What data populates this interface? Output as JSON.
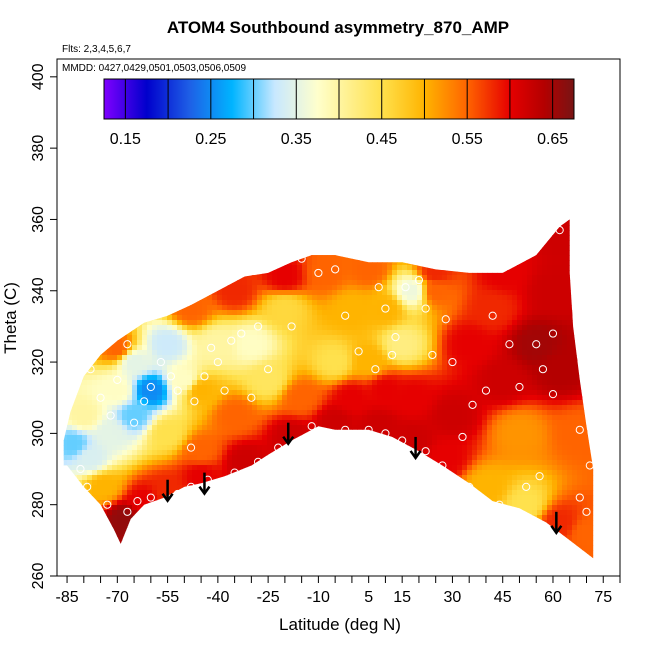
{
  "chart_data": {
    "type": "heatmap",
    "title": "ATOM4 Southbound asymmetry_870_AMP",
    "annotations": {
      "flights": "Flts: 2,3,4,5,6,7",
      "dates": "MMDD: 0427,0429,0501,0503,0506,0509"
    },
    "xlabel": "Latitude (deg N)",
    "ylabel": "Theta (C)",
    "xlim": [
      -88,
      80
    ],
    "ylim": [
      260,
      405
    ],
    "x_ticks": [
      -85,
      -70,
      -55,
      -40,
      -25,
      -10,
      5,
      15,
      30,
      45,
      60,
      75
    ],
    "x_tick_labels": [
      "-85",
      "-70",
      "-55",
      "-40",
      "-25",
      "-10",
      "5",
      "15",
      "30",
      "45",
      "60",
      "75"
    ],
    "x_minor_ticks": [
      -80,
      -75,
      -65,
      -60,
      -50,
      -45,
      -35,
      -30,
      -20,
      -15,
      -5,
      0,
      10,
      20,
      25,
      35,
      40,
      50,
      55,
      65,
      70,
      80
    ],
    "y_ticks": [
      260,
      280,
      300,
      320,
      340,
      360,
      380,
      400
    ],
    "y_tick_labels": [
      "260",
      "280",
      "300",
      "320",
      "340",
      "360",
      "380",
      "400"
    ],
    "colorbar": {
      "range": [
        0.125,
        0.675
      ],
      "ticks": [
        0.15,
        0.25,
        0.35,
        0.45,
        0.55,
        0.65
      ],
      "tick_labels": [
        "0.15",
        "0.25",
        "0.35",
        "0.45",
        "0.55",
        "0.65"
      ],
      "dividers": [
        0.15,
        0.2,
        0.25,
        0.3,
        0.35,
        0.4,
        0.45,
        0.5,
        0.55,
        0.6,
        0.65
      ],
      "colors": [
        "#7f00ff",
        "#0000cc",
        "#1e5fe6",
        "#00b4ff",
        "#c8e8ff",
        "#ffffcc",
        "#ffe14d",
        "#ffb400",
        "#ff6400",
        "#e60000",
        "#b40000",
        "#781414"
      ],
      "color_stops": [
        0.125,
        0.175,
        0.225,
        0.275,
        0.325,
        0.375,
        0.45,
        0.5,
        0.55,
        0.6,
        0.64,
        0.675
      ]
    },
    "lower_boundary": [
      [
        -85,
        291
      ],
      [
        -80,
        285
      ],
      [
        -75,
        280
      ],
      [
        -71,
        273
      ],
      [
        -69,
        269
      ],
      [
        -66,
        276
      ],
      [
        -62,
        280
      ],
      [
        -56,
        282
      ],
      [
        -50,
        285
      ],
      [
        -45,
        286
      ],
      [
        -38,
        288
      ],
      [
        -30,
        291
      ],
      [
        -25,
        294
      ],
      [
        -18,
        298
      ],
      [
        -10,
        302
      ],
      [
        -5,
        301
      ],
      [
        5,
        301
      ],
      [
        12,
        299
      ],
      [
        20,
        295
      ],
      [
        27,
        291
      ],
      [
        35,
        286
      ],
      [
        42,
        281
      ],
      [
        50,
        279
      ],
      [
        58,
        275
      ],
      [
        65,
        270
      ],
      [
        72,
        265
      ]
    ],
    "upper_boundary": [
      [
        72,
        265
      ],
      [
        72,
        290
      ],
      [
        70,
        302
      ],
      [
        68,
        315
      ],
      [
        66,
        330
      ],
      [
        65,
        345
      ],
      [
        65,
        360
      ],
      [
        62,
        358
      ],
      [
        55,
        350
      ],
      [
        45,
        345
      ],
      [
        35,
        345
      ],
      [
        25,
        346
      ],
      [
        15,
        348
      ],
      [
        5,
        348
      ],
      [
        -5,
        350
      ],
      [
        -12,
        350
      ],
      [
        -18,
        348
      ],
      [
        -25,
        345
      ],
      [
        -32,
        344
      ],
      [
        -40,
        340
      ],
      [
        -48,
        336
      ],
      [
        -55,
        333
      ],
      [
        -62,
        331
      ],
      [
        -70,
        326
      ],
      [
        -75,
        322
      ],
      [
        -80,
        316
      ],
      [
        -84,
        306
      ],
      [
        -86,
        298
      ],
      [
        -86,
        291
      ]
    ],
    "field_points": [
      {
        "lat": -78,
        "theta": 293,
        "value": 0.34
      },
      {
        "lat": -74,
        "theta": 285,
        "value": 0.5
      },
      {
        "lat": -68,
        "theta": 276,
        "value": 0.66
      },
      {
        "lat": -62,
        "theta": 281,
        "value": 0.6
      },
      {
        "lat": -55,
        "theta": 284,
        "value": 0.58
      },
      {
        "lat": -45,
        "theta": 288,
        "value": 0.6
      },
      {
        "lat": -32,
        "theta": 292,
        "value": 0.62
      },
      {
        "lat": -18,
        "theta": 299,
        "value": 0.62
      },
      {
        "lat": -5,
        "theta": 303,
        "value": 0.62
      },
      {
        "lat": 8,
        "theta": 302,
        "value": 0.62
      },
      {
        "lat": 18,
        "theta": 298,
        "value": 0.62
      },
      {
        "lat": 28,
        "theta": 293,
        "value": 0.6
      },
      {
        "lat": 40,
        "theta": 285,
        "value": 0.5
      },
      {
        "lat": 52,
        "theta": 280,
        "value": 0.45
      },
      {
        "lat": 62,
        "theta": 275,
        "value": 0.58
      },
      {
        "lat": 70,
        "theta": 272,
        "value": 0.55
      },
      {
        "lat": 68,
        "theta": 300,
        "value": 0.55
      },
      {
        "lat": 62,
        "theta": 318,
        "value": 0.64
      },
      {
        "lat": 60,
        "theta": 340,
        "value": 0.62
      },
      {
        "lat": 55,
        "theta": 325,
        "value": 0.65
      },
      {
        "lat": 50,
        "theta": 300,
        "value": 0.52
      },
      {
        "lat": 45,
        "theta": 315,
        "value": 0.62
      },
      {
        "lat": 42,
        "theta": 335,
        "value": 0.58
      },
      {
        "lat": 35,
        "theta": 325,
        "value": 0.6
      },
      {
        "lat": 30,
        "theta": 305,
        "value": 0.62
      },
      {
        "lat": 25,
        "theta": 340,
        "value": 0.55
      },
      {
        "lat": 18,
        "theta": 340,
        "value": 0.36
      },
      {
        "lat": 15,
        "theta": 325,
        "value": 0.42
      },
      {
        "lat": 18,
        "theta": 310,
        "value": 0.6
      },
      {
        "lat": 10,
        "theta": 335,
        "value": 0.5
      },
      {
        "lat": 5,
        "theta": 320,
        "value": 0.5
      },
      {
        "lat": 0,
        "theta": 335,
        "value": 0.5
      },
      {
        "lat": -5,
        "theta": 320,
        "value": 0.45
      },
      {
        "lat": -8,
        "theta": 345,
        "value": 0.55
      },
      {
        "lat": -15,
        "theta": 310,
        "value": 0.55
      },
      {
        "lat": -20,
        "theta": 335,
        "value": 0.46
      },
      {
        "lat": -25,
        "theta": 315,
        "value": 0.44
      },
      {
        "lat": -30,
        "theta": 325,
        "value": 0.38
      },
      {
        "lat": -35,
        "theta": 305,
        "value": 0.55
      },
      {
        "lat": -40,
        "theta": 325,
        "value": 0.4
      },
      {
        "lat": -45,
        "theta": 312,
        "value": 0.5
      },
      {
        "lat": -45,
        "theta": 295,
        "value": 0.55
      },
      {
        "lat": -50,
        "theta": 315,
        "value": 0.38
      },
      {
        "lat": -55,
        "theta": 325,
        "value": 0.33
      },
      {
        "lat": -55,
        "theta": 300,
        "value": 0.45
      },
      {
        "lat": -60,
        "theta": 312,
        "value": 0.25
      },
      {
        "lat": -65,
        "theta": 320,
        "value": 0.35
      },
      {
        "lat": -65,
        "theta": 305,
        "value": 0.3
      },
      {
        "lat": -70,
        "theta": 312,
        "value": 0.38
      },
      {
        "lat": -72,
        "theta": 300,
        "value": 0.35
      },
      {
        "lat": -80,
        "theta": 305,
        "value": 0.4
      },
      {
        "lat": -83,
        "theta": 297,
        "value": 0.3
      },
      {
        "lat": -70,
        "theta": 324,
        "value": 0.55
      },
      {
        "lat": -48,
        "theta": 335,
        "value": 0.55
      },
      {
        "lat": -35,
        "theta": 340,
        "value": 0.58
      },
      {
        "lat": -20,
        "theta": 344,
        "value": 0.6
      },
      {
        "lat": 5,
        "theta": 346,
        "value": 0.55
      },
      {
        "lat": 25,
        "theta": 345,
        "value": 0.58
      },
      {
        "lat": 45,
        "theta": 345,
        "value": 0.6
      },
      {
        "lat": 62,
        "theta": 356,
        "value": 0.62
      },
      {
        "lat": 0,
        "theta": 310,
        "value": 0.6
      },
      {
        "lat": 10,
        "theta": 312,
        "value": 0.6
      }
    ],
    "observation_points": [
      {
        "lat": -81,
        "theta": 290
      },
      {
        "lat": -79,
        "theta": 285
      },
      {
        "lat": -73,
        "theta": 280
      },
      {
        "lat": -71,
        "theta": 270
      },
      {
        "lat": -67,
        "theta": 278
      },
      {
        "lat": -64,
        "theta": 281
      },
      {
        "lat": -60,
        "theta": 282
      },
      {
        "lat": -52,
        "theta": 283
      },
      {
        "lat": -48,
        "theta": 285
      },
      {
        "lat": -43,
        "theta": 287
      },
      {
        "lat": -35,
        "theta": 289
      },
      {
        "lat": -28,
        "theta": 292
      },
      {
        "lat": -22,
        "theta": 296
      },
      {
        "lat": -12,
        "theta": 302
      },
      {
        "lat": -2,
        "theta": 301
      },
      {
        "lat": 5,
        "theta": 301
      },
      {
        "lat": 10,
        "theta": 300
      },
      {
        "lat": 15,
        "theta": 298
      },
      {
        "lat": 22,
        "theta": 295
      },
      {
        "lat": 27,
        "theta": 291
      },
      {
        "lat": 35,
        "theta": 285
      },
      {
        "lat": 44,
        "theta": 280
      },
      {
        "lat": 52,
        "theta": 285
      },
      {
        "lat": 56,
        "theta": 288
      },
      {
        "lat": 68,
        "theta": 282
      },
      {
        "lat": 71,
        "theta": 291
      },
      {
        "lat": 70,
        "theta": 278
      },
      {
        "lat": 68,
        "theta": 301
      },
      {
        "lat": 60,
        "theta": 311
      },
      {
        "lat": 57,
        "theta": 318
      },
      {
        "lat": 55,
        "theta": 325
      },
      {
        "lat": 60,
        "theta": 328
      },
      {
        "lat": 62,
        "theta": 357
      },
      {
        "lat": 50,
        "theta": 313
      },
      {
        "lat": 47,
        "theta": 325
      },
      {
        "lat": 42,
        "theta": 333
      },
      {
        "lat": 40,
        "theta": 312
      },
      {
        "lat": 36,
        "theta": 308
      },
      {
        "lat": 30,
        "theta": 320
      },
      {
        "lat": 28,
        "theta": 332
      },
      {
        "lat": 22,
        "theta": 335
      },
      {
        "lat": 20,
        "theta": 343
      },
      {
        "lat": 16,
        "theta": 341
      },
      {
        "lat": 13,
        "theta": 327
      },
      {
        "lat": 12,
        "theta": 322
      },
      {
        "lat": 10,
        "theta": 335
      },
      {
        "lat": 7,
        "theta": 318
      },
      {
        "lat": 2,
        "theta": 323
      },
      {
        "lat": -2,
        "theta": 333
      },
      {
        "lat": -5,
        "theta": 346
      },
      {
        "lat": -10,
        "theta": 345
      },
      {
        "lat": -15,
        "theta": 349
      },
      {
        "lat": -18,
        "theta": 330
      },
      {
        "lat": -25,
        "theta": 318
      },
      {
        "lat": -28,
        "theta": 330
      },
      {
        "lat": -33,
        "theta": 328
      },
      {
        "lat": -36,
        "theta": 326
      },
      {
        "lat": -40,
        "theta": 320
      },
      {
        "lat": -44,
        "theta": 316
      },
      {
        "lat": -47,
        "theta": 309
      },
      {
        "lat": -52,
        "theta": 312
      },
      {
        "lat": -54,
        "theta": 316
      },
      {
        "lat": -57,
        "theta": 320
      },
      {
        "lat": -60,
        "theta": 313
      },
      {
        "lat": -62,
        "theta": 309
      },
      {
        "lat": -65,
        "theta": 303
      },
      {
        "lat": -67,
        "theta": 325
      },
      {
        "lat": -70,
        "theta": 315
      },
      {
        "lat": -72,
        "theta": 305
      },
      {
        "lat": -75,
        "theta": 310
      },
      {
        "lat": -78,
        "theta": 318
      },
      {
        "lat": -48,
        "theta": 296
      },
      {
        "lat": -38,
        "theta": 312
      },
      {
        "lat": -42,
        "theta": 324
      },
      {
        "lat": -30,
        "theta": 310
      },
      {
        "lat": 8,
        "theta": 341
      },
      {
        "lat": 33,
        "theta": 299
      },
      {
        "lat": 24,
        "theta": 322
      }
    ],
    "arrows": [
      {
        "lat": -55,
        "theta": 287
      },
      {
        "lat": -44,
        "theta": 289
      },
      {
        "lat": -19,
        "theta": 303
      },
      {
        "lat": 19,
        "theta": 299
      },
      {
        "lat": 61,
        "theta": 278
      }
    ]
  }
}
